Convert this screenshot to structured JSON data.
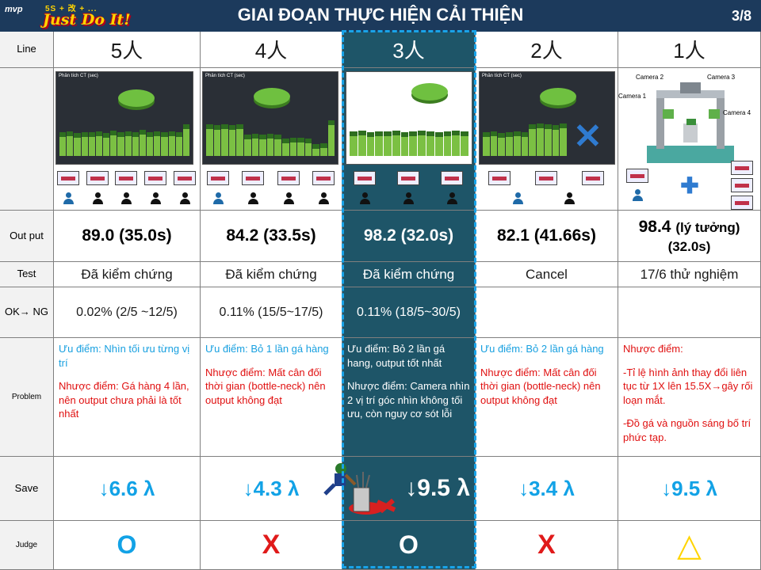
{
  "header": {
    "logo_mvp": "mvp",
    "logo_sub": "5S + 改 + ...",
    "logo_text": "Just Do It!",
    "title": "GIAI ĐOẠN  THỰC HIỆN CẢI THIỆN",
    "page": "3/8"
  },
  "row_labels": {
    "line": "Line",
    "output": "Out put",
    "test": "Test",
    "okng": "OK→ NG",
    "problem": "Problem",
    "save": "Save",
    "judge": "Judge"
  },
  "columns": [
    {
      "line": "5人",
      "output": "89.0 (35.0s)",
      "test": "Đã kiểm chứng",
      "okng": "0.02% (2/5  ~12/5)",
      "pro": "Ưu điểm: Nhìn tối ưu từng vị trí",
      "con": "Nhược điểm: Gá hàng 4 lần, nên output chưa phải là tốt nhất",
      "save": "↓6.6 λ",
      "judge": "O"
    },
    {
      "line": "4人",
      "output": "84.2 (33.5s)",
      "test": "Đã kiểm chứng",
      "okng": "0.11% (15/5~17/5)",
      "pro": "Ưu điểm: Bỏ 1 lần gá hàng",
      "con": "Nhược điểm: Mất cân đối thời gian (bottle-neck) nên output không đạt",
      "save": "↓4.3 λ",
      "judge": "X"
    },
    {
      "line": "3人",
      "output": "98.2 (32.0s)",
      "test": "Đã kiểm chứng",
      "okng": "0.11% (18/5~30/5)",
      "pro": "Ưu điểm: Bỏ 2 lần gá hang, output tốt nhất",
      "con": "Nhược điểm: Camera nhìn 2 vị trí góc nhìn không tối ưu, còn nguy cơ sót lỗi",
      "save": "↓9.5 λ",
      "judge": "O"
    },
    {
      "line": "2人",
      "output": "82.1 (41.66s)",
      "test": "Cancel",
      "okng": "",
      "pro": "Ưu điểm: Bỏ 2 lần gá hàng",
      "con": "Nhược điểm: Mất cân đối thời gian (bottle-neck) nên output không đạt",
      "save": "↓3.4 λ",
      "judge": "X"
    },
    {
      "line": "1人",
      "output_main": "98.4",
      "output_note": "(lý tưởng)",
      "output_time": "(32.0s)",
      "test": "17/6 thử nghiệm",
      "okng": "",
      "con_title": "Nhược điểm:",
      "con1": "-Tỉ lệ hình ảnh thay đổi liên tục từ 1X lên 15.5X→gây rối loạn mắt.",
      "con2": "-Đồ gá và nguồn sáng bố trí phức tạp.",
      "save": "↓9.5 λ",
      "judge": "△"
    }
  ],
  "thumb_title": "Phân tích CT (sec)",
  "camera_labels": [
    "Camera 1",
    "Camera 2",
    "Camera 3",
    "Camera 4"
  ],
  "colors": {
    "header_bg": "#1c3a5c",
    "highlight_bg": "#1e5568",
    "accent_blue": "#12a2e6",
    "red": "#e01a1a",
    "yellow": "#ffd400"
  }
}
